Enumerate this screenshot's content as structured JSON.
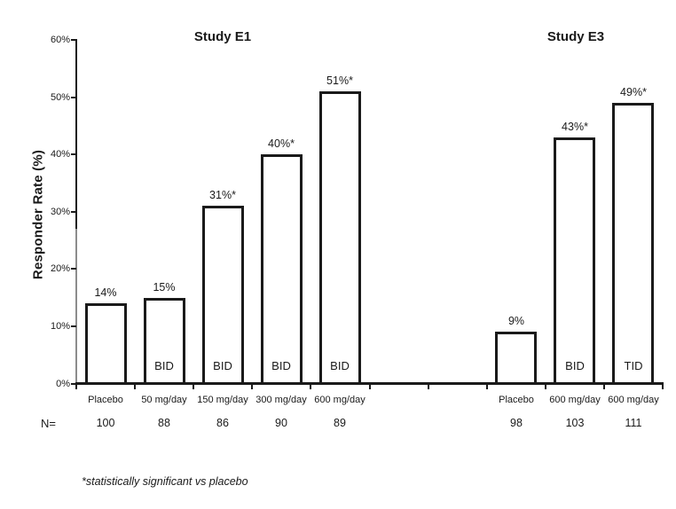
{
  "window": {
    "background": "#ffffff",
    "text_color": "#1a1a1a"
  },
  "chart_data": {
    "type": "bar",
    "title": "",
    "ylabel": "Responder Rate (%)",
    "xlabel": "",
    "ylim": [
      0,
      60
    ],
    "grid": false,
    "legend": "none",
    "slots_total": 10,
    "yticks": {
      "values": [
        0,
        10,
        20,
        30,
        40,
        50,
        60
      ],
      "labels": [
        "0%",
        "10%",
        "20%",
        "30%",
        "40%",
        "50%",
        "60%"
      ]
    },
    "n_row_label": "N=",
    "footnote": "*statistically significant vs placebo",
    "bar_style": {
      "fill": "#ffffff",
      "border": "#1a1a1a"
    },
    "groups": [
      {
        "title": "Study E1",
        "bars": [
          {
            "slot": 0,
            "category": "Placebo",
            "n": "100",
            "value": 14,
            "label": "14%",
            "schedule": ""
          },
          {
            "slot": 1,
            "category": "50 mg/day",
            "n": "88",
            "value": 15,
            "label": "15%",
            "schedule": "BID"
          },
          {
            "slot": 2,
            "category": "150 mg/day",
            "n": "86",
            "value": 31,
            "label": "31%*",
            "schedule": "BID"
          },
          {
            "slot": 3,
            "category": "300 mg/day",
            "n": "90",
            "value": 40,
            "label": "40%*",
            "schedule": "BID"
          },
          {
            "slot": 4,
            "category": "600 mg/day",
            "n": "89",
            "value": 51,
            "label": "51%*",
            "schedule": "BID"
          }
        ]
      },
      {
        "title": "Study E3",
        "bars": [
          {
            "slot": 7,
            "category": "Placebo",
            "n": "98",
            "value": 9,
            "label": "9%",
            "schedule": ""
          },
          {
            "slot": 8,
            "category": "600 mg/day",
            "n": "103",
            "value": 43,
            "label": "43%*",
            "schedule": "BID"
          },
          {
            "slot": 9,
            "category": "600 mg/day",
            "n": "111",
            "value": 49,
            "label": "49%*",
            "schedule": "TID"
          }
        ]
      }
    ]
  }
}
